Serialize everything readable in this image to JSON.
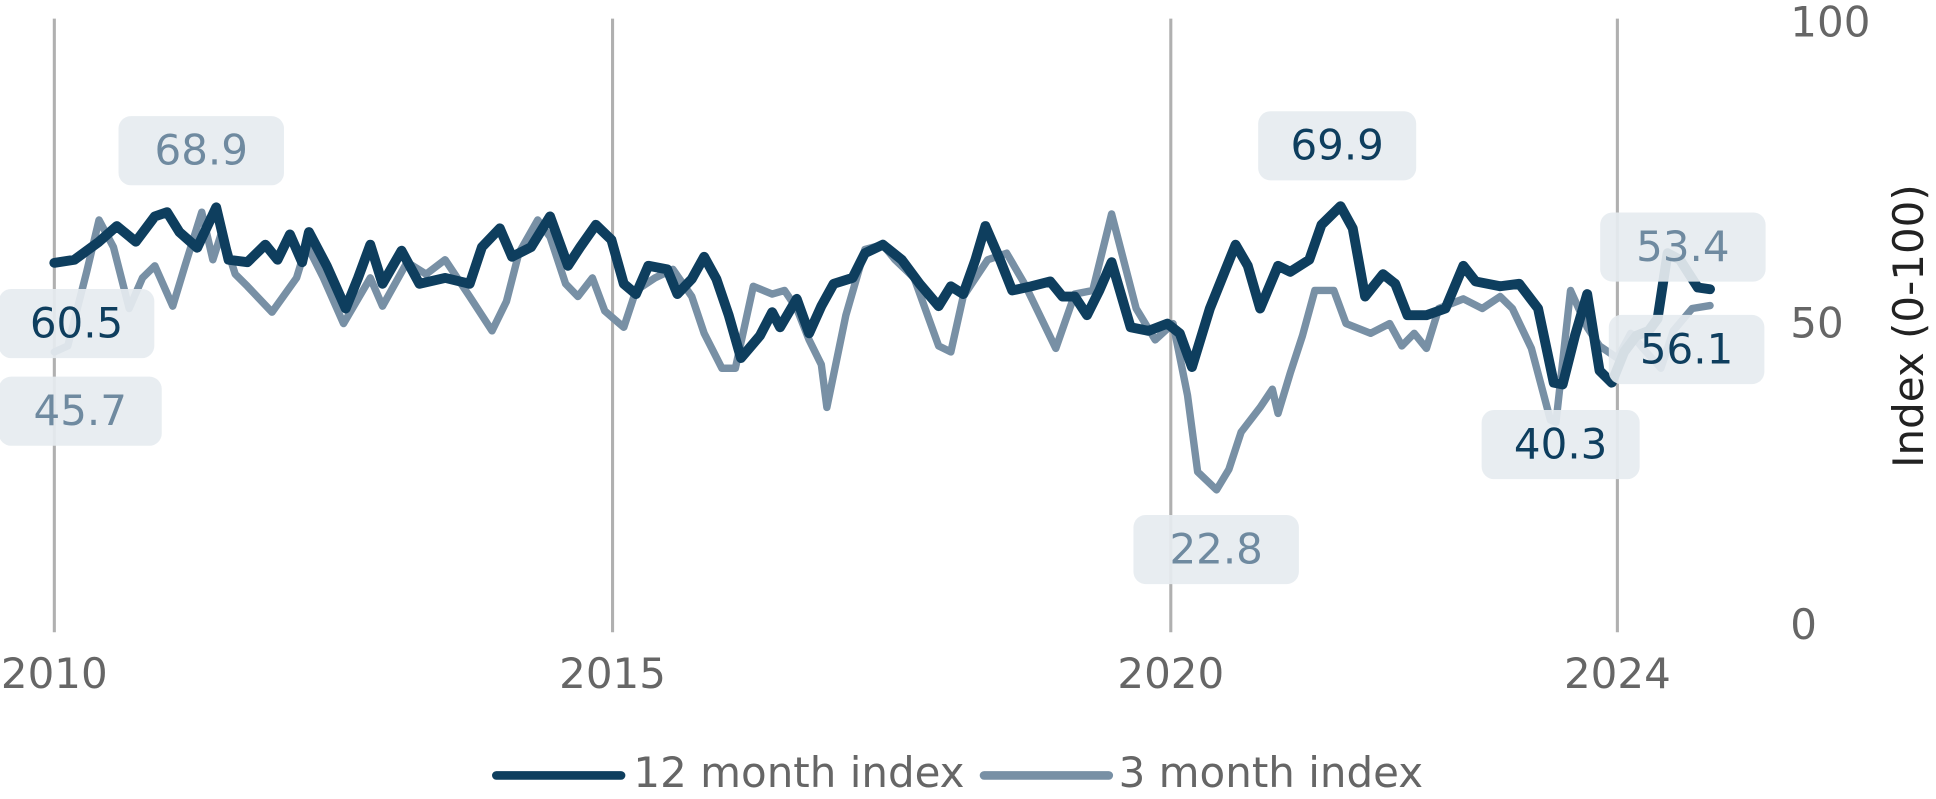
{
  "chart_data": {
    "type": "line",
    "y_axis_label": "Index (0-100)",
    "xlim": [
      2010,
      2024.83
    ],
    "ylim": [
      0,
      100
    ],
    "xticks": [
      2010,
      2015,
      2020,
      2024
    ],
    "yticks": [
      0,
      50,
      100
    ],
    "xgrid": true,
    "ygrid": false,
    "legend": "bottom",
    "series": [
      {
        "name": "12 month index",
        "color": "#0e3e5e",
        "width": 8,
        "x": [
          2010.0,
          2010.18,
          2010.4,
          2010.56,
          2010.73,
          2010.9,
          2011.01,
          2011.12,
          2011.28,
          2011.45,
          2011.56,
          2011.73,
          2011.89,
          2012.0,
          2012.11,
          2012.22,
          2012.28,
          2012.44,
          2012.61,
          2012.72,
          2012.83,
          2012.94,
          2013.11,
          2013.27,
          2013.5,
          2013.72,
          2013.83,
          2013.99,
          2014.1,
          2014.27,
          2014.44,
          2014.6,
          2014.71,
          2014.85,
          2014.99,
          2015.1,
          2015.21,
          2015.32,
          2015.49,
          2015.58,
          2015.71,
          2015.82,
          2015.93,
          2016.04,
          2016.15,
          2016.32,
          2016.43,
          2016.5,
          2016.65,
          2016.76,
          2016.87,
          2016.98,
          2017.15,
          2017.26,
          2017.42,
          2017.59,
          2017.75,
          2017.92,
          2018.03,
          2018.14,
          2018.25,
          2018.34,
          2018.47,
          2018.58,
          2018.75,
          2018.92,
          2019.03,
          2019.14,
          2019.25,
          2019.36,
          2019.47,
          2019.64,
          2019.8,
          2019.97,
          2020.08,
          2020.19,
          2020.35,
          2020.58,
          2020.69,
          2020.8,
          2020.96,
          2021.07,
          2021.24,
          2021.35,
          2021.52,
          2021.63,
          2021.74,
          2021.9,
          2022.01,
          2022.12,
          2022.29,
          2022.46,
          2022.62,
          2022.73,
          2022.95,
          2023.12,
          2023.29,
          2023.43,
          2023.51,
          2023.62,
          2023.73,
          2023.84,
          2023.95,
          2024.06,
          2024.17,
          2024.28,
          2024.36,
          2024.45,
          2024.56,
          2024.72,
          2024.83
        ],
        "values": [
          60.5,
          61,
          64,
          66.6,
          64,
          68.2,
          68.9,
          65.6,
          63,
          69.7,
          61,
          60.6,
          63.5,
          61,
          65.2,
          60.6,
          65.6,
          60,
          52.9,
          58,
          63.5,
          57,
          62.5,
          57,
          58,
          57,
          63.1,
          66.2,
          61.5,
          63.1,
          68.2,
          60,
          63.1,
          66.8,
          64.3,
          57,
          55.3,
          60,
          59.4,
          55.3,
          57.8,
          61.5,
          57.8,
          51.8,
          44.7,
          48.4,
          52.3,
          49.8,
          54.5,
          48.8,
          53.3,
          57,
          58,
          62.1,
          63.5,
          61,
          57,
          53.3,
          56.6,
          55.3,
          61,
          66.6,
          61,
          55.9,
          56.6,
          57.4,
          54.9,
          54.9,
          51.8,
          55.9,
          60.6,
          49.8,
          49.2,
          50.4,
          48.8,
          43.2,
          52.9,
          63.5,
          60,
          52.9,
          60,
          59,
          61,
          66.8,
          69.9,
          66.2,
          54.9,
          58.6,
          57,
          51.8,
          51.8,
          52.9,
          60,
          57.4,
          56.6,
          57,
          52.9,
          40.6,
          40.3,
          48.4,
          55.3,
          42.6,
          40.6,
          45.7,
          48.4,
          49.2,
          51.2,
          62.1,
          61,
          56.4,
          56.1
        ]
      },
      {
        "name": "3 month index",
        "color": "#7890a5",
        "width": 6,
        "x": [
          2010.0,
          2010.12,
          2010.29,
          2010.4,
          2010.53,
          2010.67,
          2010.79,
          2010.9,
          2011.06,
          2011.17,
          2011.32,
          2011.42,
          2011.5,
          2011.62,
          2011.73,
          2011.95,
          2012.17,
          2012.26,
          2012.41,
          2012.59,
          2012.83,
          2012.94,
          2013.16,
          2013.33,
          2013.5,
          2013.72,
          2013.92,
          2014.05,
          2014.16,
          2014.33,
          2014.44,
          2014.58,
          2014.69,
          2014.82,
          2014.93,
          2015.1,
          2015.21,
          2015.38,
          2015.54,
          2015.71,
          2015.82,
          2015.98,
          2016.1,
          2016.26,
          2016.43,
          2016.54,
          2016.65,
          2016.76,
          2016.87,
          2016.92,
          2017.09,
          2017.26,
          2017.42,
          2017.53,
          2017.7,
          2017.92,
          2018.03,
          2018.14,
          2018.36,
          2018.53,
          2018.69,
          2018.97,
          2019.14,
          2019.3,
          2019.47,
          2019.69,
          2019.86,
          2020.02,
          2020.15,
          2020.24,
          2020.41,
          2020.52,
          2020.63,
          2020.8,
          2020.91,
          2020.96,
          2021.07,
          2021.18,
          2021.29,
          2021.46,
          2021.57,
          2021.79,
          2021.96,
          2022.07,
          2022.18,
          2022.29,
          2022.4,
          2022.62,
          2022.79,
          2022.95,
          2023.06,
          2023.23,
          2023.4,
          2023.45,
          2023.58,
          2023.73,
          2023.84,
          2024.0,
          2024.12,
          2024.23,
          2024.39,
          2024.5,
          2024.67,
          2024.83
        ],
        "values": [
          45.7,
          46.7,
          59,
          67.6,
          63.1,
          52.9,
          58,
          60,
          53.3,
          60,
          68.9,
          61,
          65.6,
          58.6,
          56.6,
          52.3,
          58,
          63.5,
          58,
          50.4,
          58,
          53.3,
          60.6,
          58.6,
          61,
          54.9,
          49.2,
          54.1,
          62.1,
          67.6,
          64.8,
          57,
          54.9,
          58,
          52.5,
          49.8,
          55.9,
          58,
          59.4,
          54.9,
          48.8,
          43,
          43,
          56.6,
          55.3,
          55.9,
          52.9,
          47.7,
          43.6,
          36.5,
          51.8,
          62.7,
          63.5,
          61,
          58,
          46.7,
          45.7,
          54.9,
          61,
          62.1,
          57,
          46.3,
          55.3,
          55.9,
          68.6,
          52.9,
          47.7,
          50.4,
          38.5,
          25.8,
          22.8,
          26.2,
          32.4,
          36.5,
          39.5,
          35.5,
          42.2,
          48.4,
          55.9,
          55.9,
          50.4,
          48.8,
          50.4,
          46.7,
          48.8,
          46.3,
          52.9,
          54.5,
          52.9,
          54.9,
          52.9,
          46.3,
          34.4,
          34,
          55.9,
          49.8,
          46.7,
          44.7,
          48.8,
          46.3,
          43,
          49.2,
          52.9,
          53.4
        ]
      }
    ],
    "annotations": [
      {
        "value": 68.9,
        "color": "#6f8aa0"
      },
      {
        "value": 60.5,
        "color": "#0e3e5e"
      },
      {
        "value": 45.7,
        "color": "#6f8aa0"
      },
      {
        "value": 69.9,
        "color": "#0e3e5e"
      },
      {
        "value": 22.8,
        "color": "#6f8aa0"
      },
      {
        "value": 40.3,
        "color": "#0e3e5e"
      },
      {
        "value": 53.4,
        "color": "#6f8aa0"
      },
      {
        "value": 56.1,
        "color": "#0e3e5e"
      }
    ]
  }
}
